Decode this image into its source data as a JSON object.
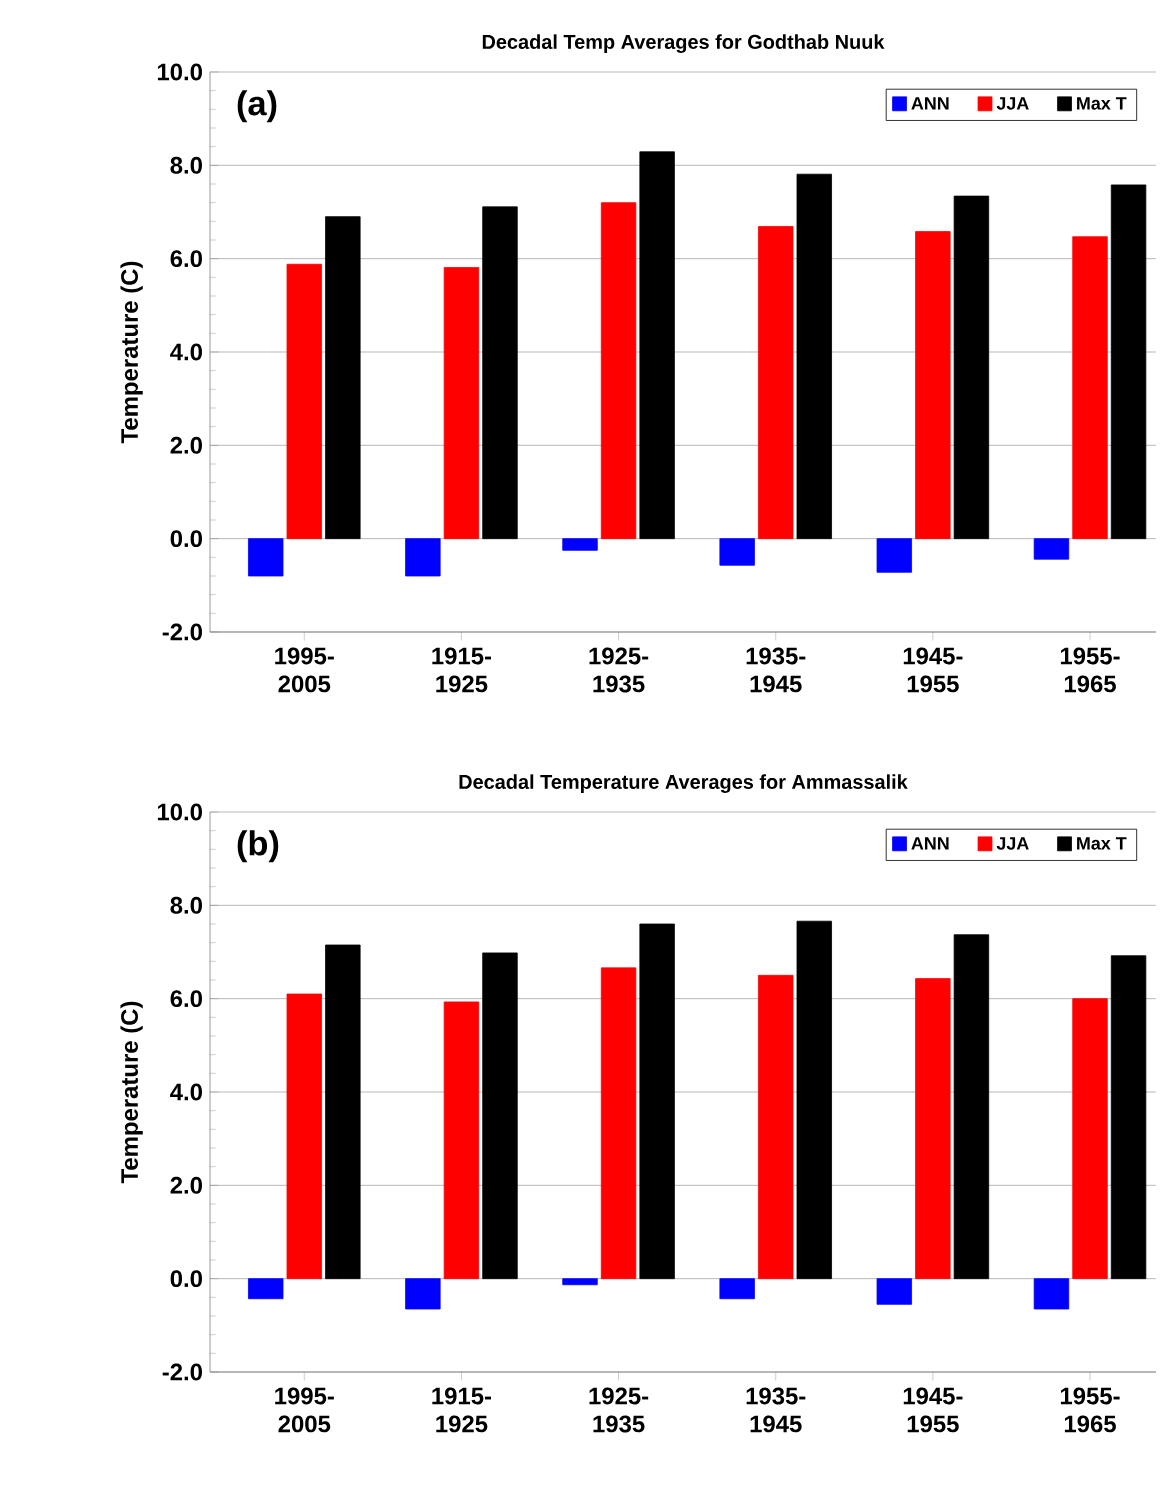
{
  "chart_data": [
    {
      "type": "bar",
      "title": "Decadal Temp Averages for Godthab Nuuk",
      "ylabel": "Temperature (C)",
      "annotations": [
        "(a)"
      ],
      "categories": [
        "1995-2005",
        "1915-1925",
        "1925-1935",
        "1935-1945",
        "1945-1955",
        "1955-1965"
      ],
      "series": [
        {
          "name": "ANN",
          "color": "#0000ff",
          "values": [
            -0.8,
            -0.8,
            -0.25,
            -0.57,
            -0.72,
            -0.44
          ]
        },
        {
          "name": "JJA",
          "color": "#ff0000",
          "values": [
            5.88,
            5.81,
            7.2,
            6.69,
            6.58,
            6.47
          ]
        },
        {
          "name": "Max T",
          "color": "#000000",
          "values": [
            6.9,
            7.11,
            8.29,
            7.81,
            7.34,
            7.58
          ]
        }
      ],
      "ylim": [
        -2,
        10
      ],
      "yticks": [
        {
          "value": -2,
          "label": "-2.0"
        },
        {
          "value": 0,
          "label": "0.0"
        },
        {
          "value": 2,
          "label": "2.0"
        },
        {
          "value": 4,
          "label": "4.0"
        },
        {
          "value": 6,
          "label": "6.0"
        },
        {
          "value": 8,
          "label": "8.0"
        },
        {
          "value": 10,
          "label": "10.0"
        }
      ],
      "grid": "y",
      "legend": "top right"
    },
    {
      "type": "bar",
      "title": "Decadal Temperature Averages for Ammassalik",
      "ylabel": "Temperature (C)",
      "annotations": [
        "(b)"
      ],
      "categories": [
        "1995-2005",
        "1915-1925",
        "1925-1935",
        "1935-1945",
        "1945-1955",
        "1955-1965"
      ],
      "series": [
        {
          "name": "ANN",
          "color": "#0000ff",
          "values": [
            -0.43,
            -0.65,
            -0.13,
            -0.43,
            -0.55,
            -0.65
          ]
        },
        {
          "name": "JJA",
          "color": "#ff0000",
          "values": [
            6.1,
            5.93,
            6.66,
            6.5,
            6.43,
            6.0
          ]
        },
        {
          "name": "Max T",
          "color": "#000000",
          "values": [
            7.15,
            6.98,
            7.6,
            7.66,
            7.37,
            6.92
          ]
        }
      ],
      "ylim": [
        -2,
        10
      ],
      "yticks": [
        {
          "value": -2,
          "label": "-2.0"
        },
        {
          "value": 0,
          "label": "0.0"
        },
        {
          "value": 2,
          "label": "2.0"
        },
        {
          "value": 4,
          "label": "4.0"
        },
        {
          "value": 6,
          "label": "6.0"
        },
        {
          "value": 8,
          "label": "8.0"
        },
        {
          "value": 10,
          "label": "10.0"
        }
      ],
      "grid": "y",
      "legend": "top right"
    }
  ]
}
